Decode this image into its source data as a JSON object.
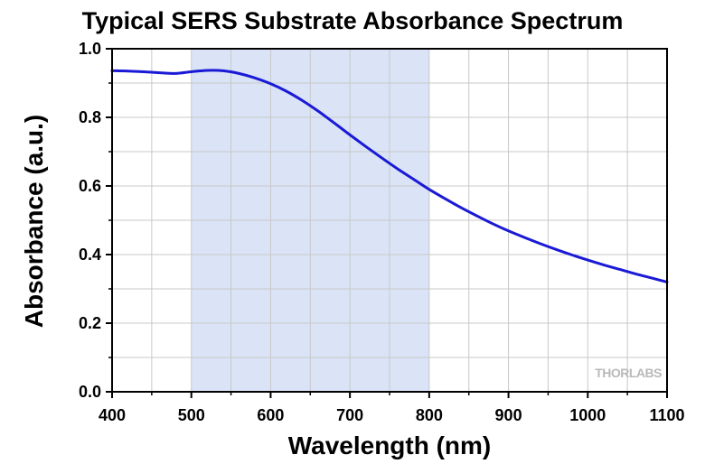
{
  "chart_data": {
    "type": "line",
    "title": "Typical SERS Substrate Absorbance Spectrum",
    "xlabel": "Wavelength (nm)",
    "ylabel": "Absorbance (a.u.)",
    "xlim": [
      400,
      1100
    ],
    "ylim": [
      0.0,
      1.0
    ],
    "x_ticks": [
      400,
      500,
      600,
      700,
      800,
      900,
      1000,
      1100
    ],
    "y_ticks": [
      "0.0",
      "0.2",
      "0.4",
      "0.6",
      "0.8",
      "1.0"
    ],
    "grid": true,
    "shaded_region": {
      "x_start": 500,
      "x_end": 800,
      "color": "#dae4f6"
    },
    "logo_text": "THORLABS",
    "series": [
      {
        "color": "#1a1ad6",
        "x": [
          400,
          420,
          440,
          460,
          480,
          500,
          520,
          540,
          560,
          580,
          600,
          620,
          640,
          660,
          680,
          700,
          720,
          740,
          760,
          780,
          800,
          820,
          840,
          860,
          880,
          900,
          920,
          940,
          960,
          980,
          1000,
          1020,
          1040,
          1060,
          1080,
          1100
        ],
        "y": [
          0.936,
          0.935,
          0.933,
          0.93,
          0.928,
          0.933,
          0.937,
          0.936,
          0.928,
          0.915,
          0.898,
          0.876,
          0.849,
          0.818,
          0.784,
          0.749,
          0.715,
          0.682,
          0.65,
          0.62,
          0.59,
          0.563,
          0.537,
          0.513,
          0.49,
          0.469,
          0.45,
          0.432,
          0.415,
          0.399,
          0.384,
          0.37,
          0.357,
          0.344,
          0.332,
          0.32
        ]
      }
    ]
  },
  "colors": {
    "grid": "#c8c8c8",
    "axis": "#000000",
    "background": "#ffffff"
  }
}
